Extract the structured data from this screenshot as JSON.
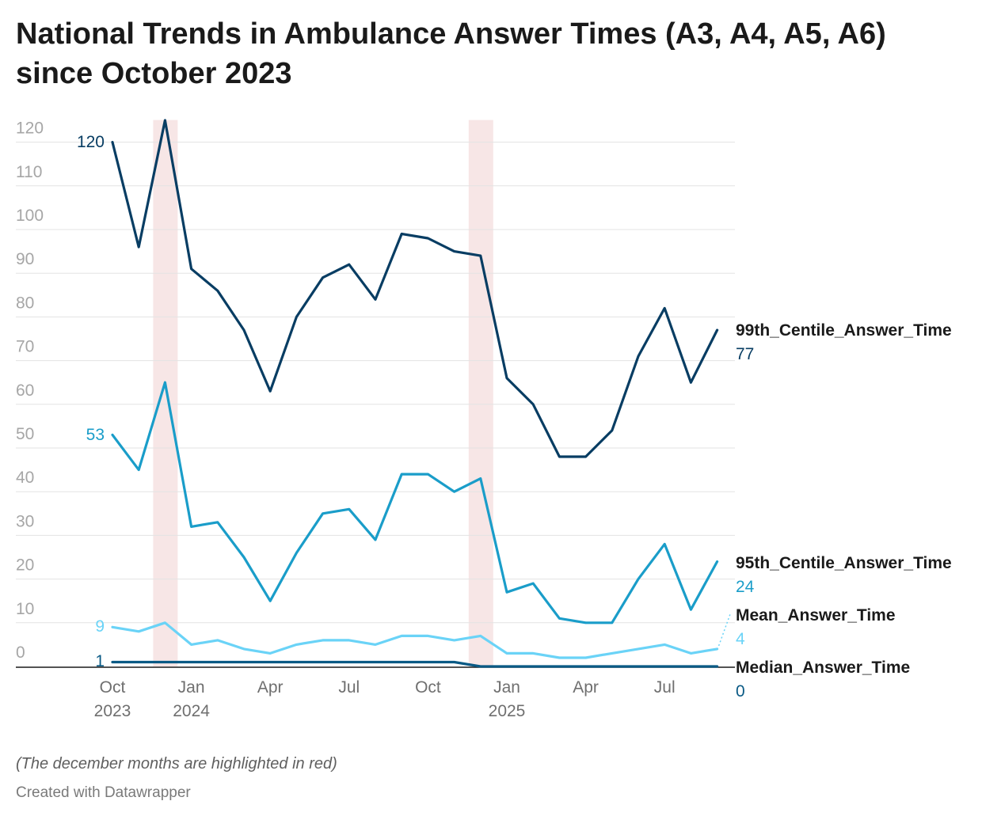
{
  "title": "National Trends in Ambulance Answer Times (A3, A4, A5, A6) since October 2023",
  "note": "(The december months are highlighted in red)",
  "credit": "Created with Datawrapper",
  "chart_data": {
    "type": "line",
    "x": [
      "2023-10",
      "2023-11",
      "2023-12",
      "2024-01",
      "2024-02",
      "2024-03",
      "2024-04",
      "2024-05",
      "2024-06",
      "2024-07",
      "2024-08",
      "2024-09",
      "2024-10",
      "2024-11",
      "2024-12",
      "2025-01",
      "2025-02",
      "2025-03",
      "2025-04",
      "2025-05",
      "2025-06",
      "2025-07",
      "2025-08",
      "2025-09"
    ],
    "ylim": [
      0,
      120
    ],
    "yticks": [
      0,
      10,
      20,
      30,
      40,
      50,
      60,
      70,
      80,
      90,
      100,
      110,
      120
    ],
    "xticks": [
      {
        "x": "2023-10",
        "line1": "Oct",
        "line2": "2023"
      },
      {
        "x": "2024-01",
        "line1": "Jan",
        "line2": "2024"
      },
      {
        "x": "2024-04",
        "line1": "Apr",
        "line2": ""
      },
      {
        "x": "2024-07",
        "line1": "Jul",
        "line2": ""
      },
      {
        "x": "2024-10",
        "line1": "Oct",
        "line2": ""
      },
      {
        "x": "2025-01",
        "line1": "Jan",
        "line2": "2025"
      },
      {
        "x": "2025-04",
        "line1": "Apr",
        "line2": ""
      },
      {
        "x": "2025-07",
        "line1": "Jul",
        "line2": ""
      }
    ],
    "highlight_months": [
      "2023-12",
      "2024-12"
    ],
    "highlight_color": "#f7e6e6",
    "grid": true,
    "series": [
      {
        "name": "99th_Centile_Answer_Time",
        "color": "#083d63",
        "start_label": "120",
        "end_label": "77",
        "values": [
          120,
          96,
          125,
          91,
          86,
          77,
          63,
          80,
          89,
          92,
          84,
          99,
          98,
          95,
          94,
          66,
          60,
          48,
          48,
          54,
          71,
          82,
          65,
          77
        ]
      },
      {
        "name": "95th_Centile_Answer_Time",
        "color": "#1a9dc9",
        "start_label": "53",
        "end_label": "24",
        "values": [
          53,
          45,
          65,
          32,
          33,
          25,
          15,
          26,
          35,
          36,
          29,
          44,
          44,
          40,
          43,
          17,
          19,
          11,
          10,
          10,
          20,
          28,
          13,
          24
        ]
      },
      {
        "name": "Mean_Answer_Time",
        "color": "#6ad3f7",
        "start_label": "9",
        "end_label": "4",
        "values": [
          9,
          8,
          10,
          5,
          6,
          4,
          3,
          5,
          6,
          6,
          5,
          7,
          7,
          6,
          7,
          3,
          3,
          2,
          2,
          3,
          4,
          5,
          3,
          4
        ]
      },
      {
        "name": "Median_Answer_Time",
        "color": "#0a5a85",
        "start_label": "1",
        "end_label": "0",
        "values": [
          1,
          1,
          1,
          1,
          1,
          1,
          1,
          1,
          1,
          1,
          1,
          1,
          1,
          1,
          0,
          0,
          0,
          0,
          0,
          0,
          0,
          0,
          0,
          0
        ]
      }
    ]
  }
}
